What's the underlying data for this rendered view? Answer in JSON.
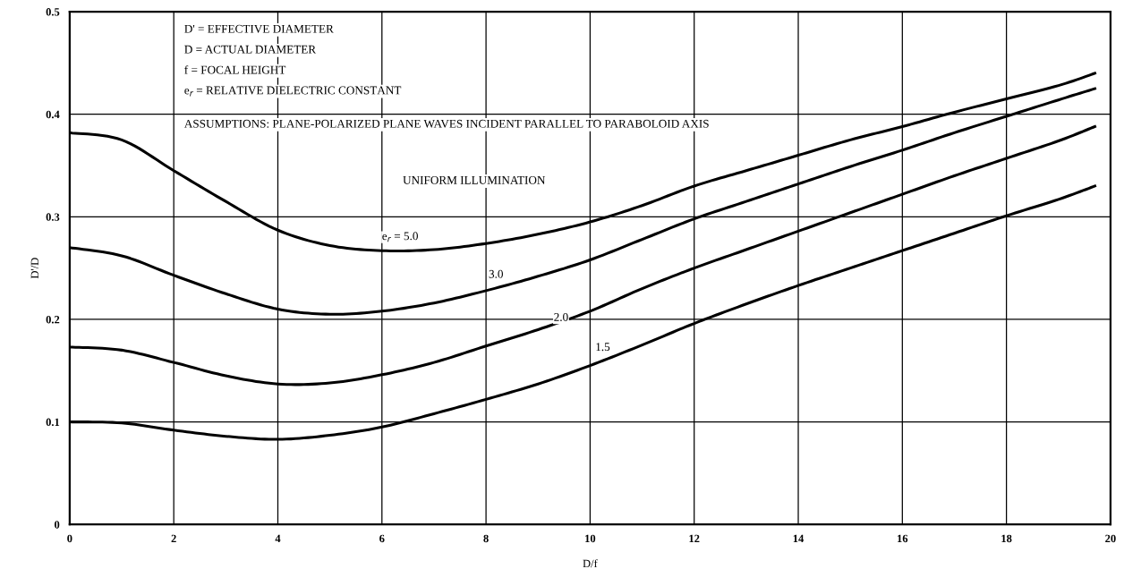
{
  "chart_data": {
    "type": "line",
    "xlabel": "D/f",
    "ylabel": "D'/D",
    "x": [
      0,
      1,
      2,
      3,
      4,
      5,
      6,
      7,
      8,
      9,
      10,
      11,
      12,
      13,
      14,
      15,
      16,
      17,
      18,
      19,
      19.7
    ],
    "series": [
      {
        "name": "e$_{r}$ = 5.0",
        "color": "#000000",
        "values": [
          0.382,
          0.375,
          0.345,
          0.315,
          0.287,
          0.272,
          0.267,
          0.268,
          0.274,
          0.283,
          0.295,
          0.311,
          0.33,
          0.345,
          0.36,
          0.375,
          0.388,
          0.402,
          0.415,
          0.428,
          0.44
        ]
      },
      {
        "name": "3.0",
        "color": "#000000",
        "values": [
          0.27,
          0.262,
          0.243,
          0.225,
          0.21,
          0.205,
          0.208,
          0.216,
          0.228,
          0.242,
          0.258,
          0.278,
          0.298,
          0.315,
          0.332,
          0.349,
          0.365,
          0.382,
          0.398,
          0.414,
          0.425
        ]
      },
      {
        "name": "2.0",
        "color": "#000000",
        "values": [
          0.173,
          0.17,
          0.158,
          0.145,
          0.137,
          0.138,
          0.146,
          0.158,
          0.174,
          0.19,
          0.208,
          0.23,
          0.25,
          0.268,
          0.286,
          0.304,
          0.322,
          0.34,
          0.357,
          0.374,
          0.388
        ]
      },
      {
        "name": "1.5",
        "color": "#000000",
        "values": [
          0.1,
          0.099,
          0.092,
          0.086,
          0.083,
          0.087,
          0.095,
          0.108,
          0.122,
          0.137,
          0.155,
          0.175,
          0.196,
          0.215,
          0.233,
          0.25,
          0.267,
          0.284,
          0.301,
          0.317,
          0.33
        ]
      }
    ],
    "xlim": [
      0,
      20
    ],
    "xticks": [
      0,
      2,
      4,
      6,
      8,
      10,
      12,
      14,
      16,
      18,
      20
    ],
    "ylim": [
      0,
      0.5
    ],
    "yticks": [
      0,
      0.1,
      0.2,
      0.3,
      0.4,
      0.5
    ],
    "grid": true,
    "marker": "none",
    "line_style": "solid",
    "annotations": [
      "D' = EFFECTIVE DIAMETER",
      "D = ACTUAL DIAMETER",
      "f = FOCAL HEIGHT",
      "e$_{r}$ = RELATIVE DIELECTRIC CONSTANT",
      "ASSUMPTIONS: PLANE-POLARIZED PLANE WAVES INCIDENT PARALLEL TO PARABOLOID AXIS",
      "UNIFORM ILLUMINATION"
    ]
  }
}
